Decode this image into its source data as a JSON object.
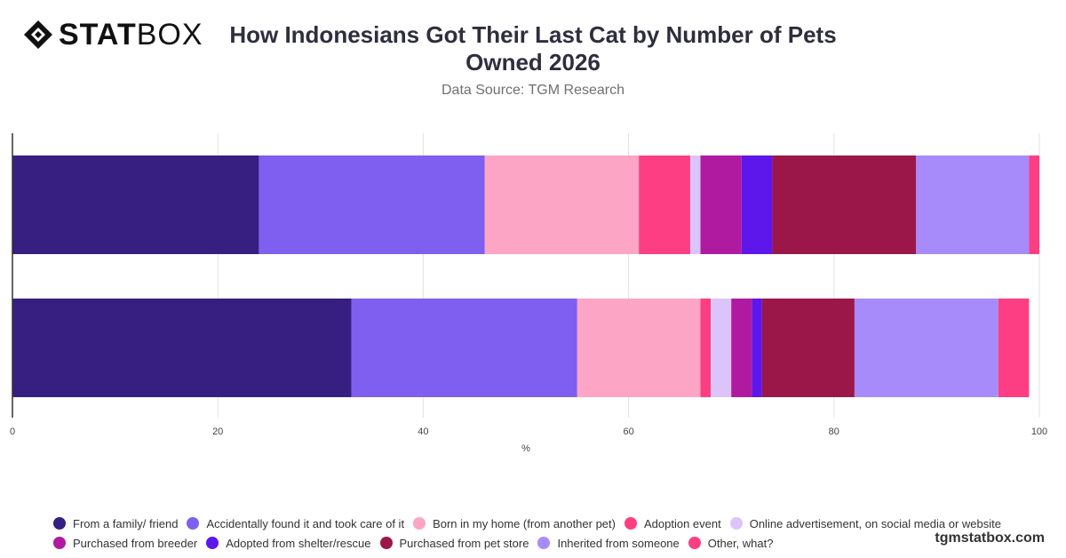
{
  "brand": {
    "bold": "STAT",
    "light": "BOX"
  },
  "title": "How Indonesians Got Their Last Cat by Number of Pets Owned 2026",
  "subtitle": "Data Source: TGM Research",
  "footer": "tgmstatbox.com",
  "colors": [
    "#371f82",
    "#7f5fef",
    "#fca5c5",
    "#fd3e82",
    "#dcc4fb",
    "#b01aa0",
    "#5e17eb",
    "#9b174a",
    "#a78bfa",
    "#fd3e82"
  ],
  "chart_data": {
    "type": "bar",
    "orientation": "horizontal",
    "stacked": true,
    "categories": [
      "",
      ""
    ],
    "series": [
      {
        "name": "From a family/ friend",
        "values": [
          24,
          33
        ]
      },
      {
        "name": "Accidentally found it and took care of it",
        "values": [
          22,
          22
        ]
      },
      {
        "name": "Born in my home (from another pet)",
        "values": [
          15,
          12
        ]
      },
      {
        "name": "Adoption event",
        "values": [
          5,
          1
        ]
      },
      {
        "name": "Online advertisement, on social media or website",
        "values": [
          1,
          2
        ]
      },
      {
        "name": "Purchased from breeder",
        "values": [
          4,
          2
        ]
      },
      {
        "name": "Adopted from shelter/rescue",
        "values": [
          3,
          1
        ]
      },
      {
        "name": "Purchased from pet store",
        "values": [
          14,
          9
        ]
      },
      {
        "name": "Inherited from someone",
        "values": [
          11,
          14
        ]
      },
      {
        "name": "Other, what?",
        "values": [
          1,
          3
        ]
      }
    ],
    "xlabel": "%",
    "xlim": [
      0,
      100
    ],
    "xticks": [
      "0",
      "20",
      "40",
      "60",
      "80",
      "100"
    ],
    "grid": true,
    "legend": "bottom"
  }
}
